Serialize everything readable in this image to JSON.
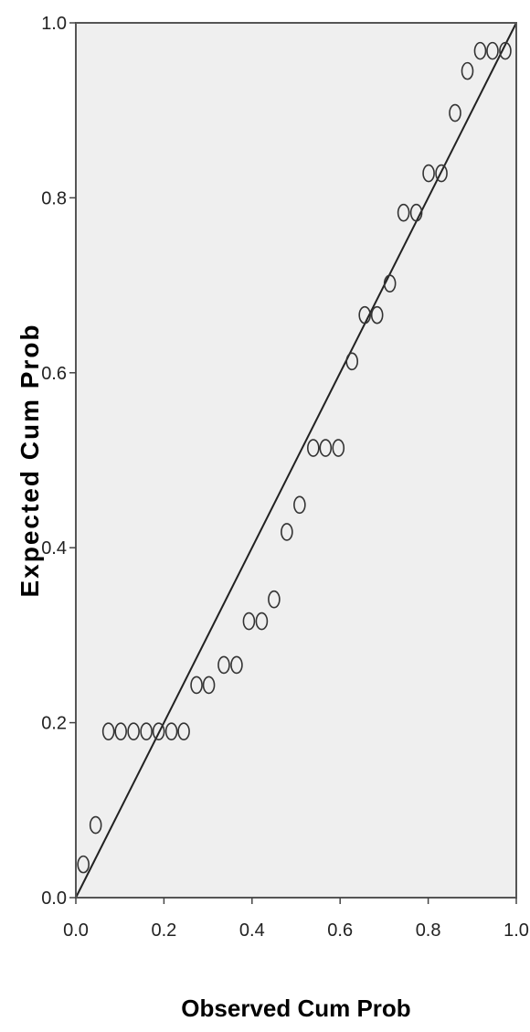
{
  "chart_data": {
    "type": "scatter",
    "title": "",
    "xlabel": "Observed Cum Prob",
    "ylabel": "Expected Cum Prob",
    "xlim": [
      0.0,
      1.0
    ],
    "ylim": [
      0.0,
      1.0
    ],
    "x_ticks": [
      "0.0",
      "0.2",
      "0.4",
      "0.6",
      "0.8",
      "1.0"
    ],
    "y_ticks": [
      "0.0",
      "0.2",
      "0.4",
      "0.6",
      "0.8",
      "1.0"
    ],
    "grid": false,
    "reference_line": {
      "from": [
        0,
        0
      ],
      "to": [
        1,
        1
      ]
    },
    "points": [
      {
        "x": 0.017,
        "y": 0.038
      },
      {
        "x": 0.045,
        "y": 0.083
      },
      {
        "x": 0.074,
        "y": 0.19
      },
      {
        "x": 0.102,
        "y": 0.19
      },
      {
        "x": 0.131,
        "y": 0.19
      },
      {
        "x": 0.16,
        "y": 0.19
      },
      {
        "x": 0.188,
        "y": 0.19
      },
      {
        "x": 0.217,
        "y": 0.19
      },
      {
        "x": 0.245,
        "y": 0.19
      },
      {
        "x": 0.274,
        "y": 0.243
      },
      {
        "x": 0.302,
        "y": 0.243
      },
      {
        "x": 0.336,
        "y": 0.266
      },
      {
        "x": 0.365,
        "y": 0.266
      },
      {
        "x": 0.393,
        "y": 0.316
      },
      {
        "x": 0.422,
        "y": 0.316
      },
      {
        "x": 0.45,
        "y": 0.341
      },
      {
        "x": 0.479,
        "y": 0.418
      },
      {
        "x": 0.508,
        "y": 0.449
      },
      {
        "x": 0.539,
        "y": 0.514
      },
      {
        "x": 0.567,
        "y": 0.514
      },
      {
        "x": 0.596,
        "y": 0.514
      },
      {
        "x": 0.627,
        "y": 0.613
      },
      {
        "x": 0.656,
        "y": 0.666
      },
      {
        "x": 0.684,
        "y": 0.666
      },
      {
        "x": 0.713,
        "y": 0.702
      },
      {
        "x": 0.744,
        "y": 0.783
      },
      {
        "x": 0.773,
        "y": 0.783
      },
      {
        "x": 0.801,
        "y": 0.828
      },
      {
        "x": 0.83,
        "y": 0.828
      },
      {
        "x": 0.861,
        "y": 0.897
      },
      {
        "x": 0.889,
        "y": 0.945
      },
      {
        "x": 0.918,
        "y": 0.968
      },
      {
        "x": 0.946,
        "y": 0.968
      },
      {
        "x": 0.975,
        "y": 0.968
      }
    ],
    "colors": {
      "plot_background": "#efefef",
      "frame": "#555555",
      "marker": "#333333",
      "line": "#222222"
    }
  }
}
